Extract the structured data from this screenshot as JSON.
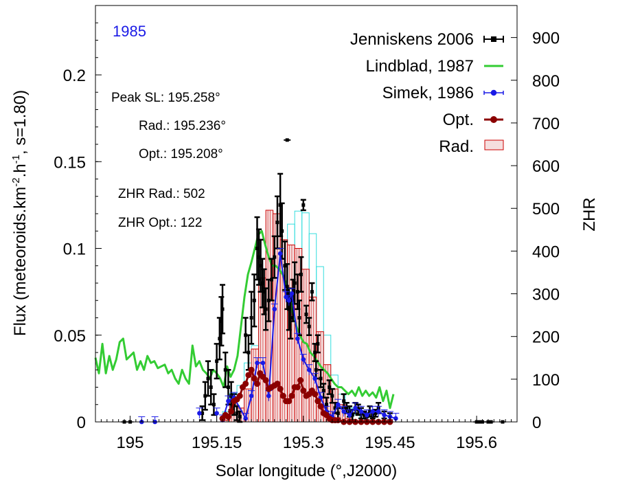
{
  "chart_data": {
    "type": "mixed",
    "title": "1985",
    "xlabel": "Solar longitude (°,J2000)",
    "ylabel_left": {
      "pre": "Flux (meteoroids.km",
      "sup1": "-2",
      "mid": ".h",
      "sup2": "-1",
      "post": ", s=1.80)"
    },
    "ylabel_right": "ZHR",
    "xlim": [
      194.94,
      195.67
    ],
    "ylim_left": [
      0,
      0.24
    ],
    "ylim_right": [
      0,
      975
    ],
    "xticks": [
      {
        "v": 195.0,
        "label": "195"
      },
      {
        "v": 195.15,
        "label": "195.15"
      },
      {
        "v": 195.3,
        "label": "195.3"
      },
      {
        "v": 195.45,
        "label": "195.45"
      },
      {
        "v": 195.6,
        "label": "195.6"
      }
    ],
    "yticks_left": [
      {
        "v": 0,
        "label": "0"
      },
      {
        "v": 0.05,
        "label": "0.05"
      },
      {
        "v": 0.1,
        "label": "0.1"
      },
      {
        "v": 0.15,
        "label": "0.15"
      },
      {
        "v": 0.2,
        "label": "0.2"
      }
    ],
    "yticks_right": [
      {
        "v": 0,
        "label": "0"
      },
      {
        "v": 100,
        "label": "100"
      },
      {
        "v": 200,
        "label": "200"
      },
      {
        "v": 300,
        "label": "300"
      },
      {
        "v": 400,
        "label": "400"
      },
      {
        "v": 500,
        "label": "500"
      },
      {
        "v": 600,
        "label": "600"
      },
      {
        "v": 700,
        "label": "700"
      },
      {
        "v": 800,
        "label": "800"
      },
      {
        "v": 900,
        "label": "900"
      }
    ],
    "annotations": {
      "peak_sl": "Peak SL: 195.258°",
      "rad": "Rad.: 195.236°",
      "opt": "Opt.: 195.208°",
      "zhr_rad": "ZHR Rad.: 502",
      "zhr_opt": "ZHR Opt.: 122"
    },
    "legend": {
      "position": "top-right",
      "entries": [
        {
          "label": "Jenniskens 2006",
          "color": "#000000",
          "style": "errorbar-points"
        },
        {
          "label": "Lindblad, 1987",
          "color": "#33cc33",
          "style": "line"
        },
        {
          "label": "Simek, 1986",
          "color": "#1a1ae6",
          "style": "line-points-errorbar"
        },
        {
          "label": "Opt.",
          "color": "#8b0000",
          "style": "line-points"
        },
        {
          "label": "Rad.",
          "color": "#cc0000",
          "style": "histogram"
        }
      ]
    },
    "series": [
      {
        "name": "Rad.",
        "axis": "left",
        "type": "histogram",
        "color": "#cc0000",
        "fill": "#f5dede",
        "bin_width": 0.0125,
        "bins": [
          [
            195.16,
            0.001
          ],
          [
            195.1725,
            0.0125
          ],
          [
            195.185,
            0.008
          ],
          [
            195.1975,
            0.019
          ],
          [
            195.21,
            0.042
          ],
          [
            195.2225,
            0.083
          ],
          [
            195.235,
            0.122
          ],
          [
            195.2475,
            0.12
          ],
          [
            195.26,
            0.105
          ],
          [
            195.2725,
            0.102
          ],
          [
            195.285,
            0.1
          ],
          [
            195.2975,
            0.088
          ],
          [
            195.31,
            0.072
          ],
          [
            195.3225,
            0.052
          ],
          [
            195.335,
            0.033
          ],
          [
            195.3475,
            0.019
          ],
          [
            195.36,
            0.01
          ],
          [
            195.3725,
            0.002
          ]
        ]
      },
      {
        "name": "Rad. (upper)",
        "axis": "left",
        "type": "histogram",
        "color": "#33dddd",
        "bin_width": 0.0125,
        "bins": [
          [
            195.16,
            0.006
          ],
          [
            195.1725,
            0.0165
          ],
          [
            195.185,
            0.021
          ],
          [
            195.1975,
            0.034
          ],
          [
            195.21,
            0.044
          ],
          [
            195.2225,
            0.0555
          ],
          [
            195.235,
            0.074
          ],
          [
            195.2475,
            0.103
          ],
          [
            195.26,
            0.105
          ],
          [
            195.2725,
            0.114
          ],
          [
            195.285,
            0.1215
          ],
          [
            195.2975,
            0.1205
          ],
          [
            195.31,
            0.1085
          ],
          [
            195.3225,
            0.0895
          ],
          [
            195.335,
            0.05
          ],
          [
            195.3475,
            0.027
          ],
          [
            195.36,
            0.016
          ],
          [
            195.3725,
            0.008
          ],
          [
            195.385,
            0.004
          ]
        ]
      },
      {
        "name": "Lindblad, 1987",
        "axis": "left",
        "type": "line",
        "color": "#33cc33",
        "x": [
          194.94,
          194.946,
          194.952,
          194.958,
          194.964,
          194.97,
          194.976,
          194.982,
          194.988,
          194.994,
          195.0,
          195.006,
          195.012,
          195.018,
          195.024,
          195.03,
          195.036,
          195.042,
          195.048,
          195.054,
          195.06,
          195.066,
          195.072,
          195.078,
          195.084,
          195.09,
          195.096,
          195.102,
          195.108,
          195.114,
          195.12,
          195.126,
          195.132,
          195.138,
          195.144,
          195.15,
          195.156,
          195.162,
          195.168,
          195.174,
          195.18,
          195.186,
          195.192,
          195.198,
          195.204,
          195.21,
          195.216,
          195.222,
          195.228,
          195.234,
          195.24,
          195.246,
          195.252,
          195.258,
          195.264,
          195.27,
          195.276,
          195.282,
          195.288,
          195.294,
          195.3,
          195.306,
          195.312,
          195.318,
          195.324,
          195.33,
          195.336,
          195.342,
          195.348,
          195.354,
          195.36,
          195.366,
          195.372,
          195.378,
          195.384,
          195.39,
          195.396,
          195.402,
          195.408,
          195.414,
          195.42,
          195.426,
          195.432,
          195.438,
          195.444,
          195.45,
          195.456
        ],
        "y": [
          0.037,
          0.028,
          0.045,
          0.028,
          0.038,
          0.03,
          0.036,
          0.046,
          0.048,
          0.036,
          0.038,
          0.04,
          0.03,
          0.035,
          0.03,
          0.038,
          0.034,
          0.035,
          0.031,
          0.032,
          0.033,
          0.028,
          0.03,
          0.025,
          0.022,
          0.03,
          0.025,
          0.022,
          0.044,
          0.032,
          0.035,
          0.03,
          0.028,
          0.025,
          0.03,
          0.028,
          0.025,
          0.02,
          0.032,
          0.026,
          0.03,
          0.038,
          0.055,
          0.072,
          0.085,
          0.092,
          0.1,
          0.108,
          0.11,
          0.102,
          0.095,
          0.09,
          0.09,
          0.088,
          0.085,
          0.08,
          0.075,
          0.062,
          0.055,
          0.05,
          0.046,
          0.045,
          0.04,
          0.038,
          0.035,
          0.032,
          0.03,
          0.028,
          0.025,
          0.022,
          0.02,
          0.02,
          0.018,
          0.016,
          0.018,
          0.015,
          0.02,
          0.015,
          0.018,
          0.015,
          0.017,
          0.014,
          0.02,
          0.012,
          0.018,
          0.008,
          0.016
        ]
      },
      {
        "name": "Jenniskens 2006",
        "axis": "left",
        "type": "errorbar-points",
        "color": "#000000",
        "points": [
          [
            194.99,
            0,
            0
          ],
          [
            195.0,
            0,
            0
          ],
          [
            195.125,
            0.005,
            0.004
          ],
          [
            195.13,
            0.015,
            0.008
          ],
          [
            195.135,
            0.025,
            0.01
          ],
          [
            195.14,
            0.02,
            0.01
          ],
          [
            195.145,
            0.01,
            0.006
          ],
          [
            195.15,
            0.035,
            0.01
          ],
          [
            195.155,
            0.048,
            0.012
          ],
          [
            195.158,
            0.058,
            0.014
          ],
          [
            195.16,
            0.065,
            0.014
          ],
          [
            195.165,
            0.03,
            0.01
          ],
          [
            195.17,
            0.02,
            0.01
          ],
          [
            195.175,
            0.015,
            0.008
          ],
          [
            195.18,
            0.01,
            0.006
          ],
          [
            195.185,
            0.005,
            0.004
          ],
          [
            195.19,
            0.003,
            0.003
          ],
          [
            195.2,
            0.05,
            0.01
          ],
          [
            195.205,
            0.04,
            0.01
          ],
          [
            195.21,
            0.06,
            0.015
          ],
          [
            195.215,
            0.07,
            0.015
          ],
          [
            195.22,
            0.1,
            0.018
          ],
          [
            195.223,
            0.095,
            0.016
          ],
          [
            195.226,
            0.09,
            0.015
          ],
          [
            195.229,
            0.08,
            0.014
          ],
          [
            195.232,
            0.075,
            0.013
          ],
          [
            195.235,
            0.065,
            0.012
          ],
          [
            195.24,
            0.07,
            0.012
          ],
          [
            195.245,
            0.082,
            0.012
          ],
          [
            195.25,
            0.095,
            0.012
          ],
          [
            195.255,
            0.115,
            0.015
          ],
          [
            195.26,
            0.125,
            0.018
          ],
          [
            195.263,
            0.11,
            0.016
          ],
          [
            195.268,
            0.09,
            0.014
          ],
          [
            195.272,
            0.078,
            0.013
          ],
          [
            195.275,
            0.065,
            0.012
          ],
          [
            195.278,
            0.06,
            0.012
          ],
          [
            195.282,
            0.07,
            0.012
          ],
          [
            195.285,
            0.08,
            0.012
          ],
          [
            195.29,
            0.075,
            0.01
          ],
          [
            195.293,
            0.06,
            0.01
          ],
          [
            195.296,
            0.085,
            0.01
          ],
          [
            195.3,
            0.125,
            0.003
          ],
          [
            195.305,
            0.062,
            0.005
          ],
          [
            195.31,
            0.055,
            0.005
          ],
          [
            195.315,
            0.075,
            0.005
          ],
          [
            195.32,
            0.04,
            0.005
          ],
          [
            195.322,
            0.03,
            0.005
          ],
          [
            195.325,
            0.045,
            0.005
          ],
          [
            195.33,
            0.025,
            0.005
          ],
          [
            195.335,
            0.018,
            0.004
          ],
          [
            195.34,
            0.01,
            0.004
          ],
          [
            195.345,
            0.02,
            0.004
          ],
          [
            195.35,
            0.015,
            0.004
          ],
          [
            195.355,
            0.008,
            0.003
          ],
          [
            195.36,
            0.005,
            0.003
          ],
          [
            195.37,
            0.012,
            0.004
          ],
          [
            195.375,
            0.008,
            0.003
          ],
          [
            195.38,
            0.006,
            0.003
          ],
          [
            195.385,
            0.004,
            0.003
          ],
          [
            195.39,
            0.008,
            0.003
          ],
          [
            195.395,
            0.007,
            0.003
          ],
          [
            195.4,
            0.005,
            0.003
          ],
          [
            195.405,
            0.004,
            0.002
          ],
          [
            195.41,
            0.003,
            0.002
          ],
          [
            195.415,
            0.006,
            0.003
          ],
          [
            195.42,
            0.004,
            0.002
          ],
          [
            195.425,
            0.005,
            0.002
          ],
          [
            195.43,
            0.008,
            0.003
          ],
          [
            195.44,
            0.004,
            0.002
          ],
          [
            195.45,
            0.003,
            0.002
          ],
          [
            195.6,
            0,
            0
          ],
          [
            195.605,
            0,
            0
          ],
          [
            195.61,
            0,
            0
          ],
          [
            195.62,
            0,
            0
          ],
          [
            195.625,
            0,
            0
          ],
          [
            195.645,
            0,
            0
          ]
        ]
      },
      {
        "name": "Jenniskens 2006 (isolated)",
        "axis": "right",
        "type": "errorbar-points",
        "color": "#000000",
        "points": [
          [
            195.272,
            660,
            3
          ]
        ]
      },
      {
        "name": "Simek, 1986",
        "axis": "left",
        "type": "line-points-errorbar",
        "color": "#1a1ae6",
        "errbar": 0.003,
        "isolated": [
          [
            195.02,
            0
          ],
          [
            195.043,
            0
          ],
          [
            195.12,
            0.005
          ],
          [
            195.15,
            0.005
          ]
        ],
        "x": [
          195.16,
          195.17,
          195.18,
          195.2,
          195.21,
          195.22,
          195.23,
          195.24,
          195.25,
          195.26,
          195.27,
          195.275,
          195.28,
          195.29,
          195.3,
          195.31,
          195.32,
          195.33,
          195.34,
          195.35,
          195.36,
          195.37,
          195.38,
          195.39,
          195.4,
          195.41,
          195.42,
          195.43,
          195.44,
          195.45,
          195.46
        ],
        "y": [
          0.001,
          0.012,
          0.014,
          0.002,
          0.015,
          0.034,
          0.034,
          0.015,
          0.065,
          0.097,
          0.072,
          0.07,
          0.074,
          0.048,
          0.036,
          0.03,
          0.025,
          0.014,
          0.006,
          0.003,
          0.01,
          0.006,
          0.004,
          0.008,
          0.006,
          0.004,
          0.006,
          0.006,
          0.004,
          0.003,
          0.002
        ]
      },
      {
        "name": "Opt.",
        "axis": "left",
        "type": "line-points",
        "color": "#8b0000",
        "x": [
          195.16,
          195.165,
          195.17,
          195.175,
          195.18,
          195.185,
          195.19,
          195.195,
          195.2,
          195.205,
          195.21,
          195.215,
          195.22,
          195.225,
          195.23,
          195.235,
          195.24,
          195.245,
          195.25,
          195.255,
          195.26,
          195.265,
          195.27,
          195.275,
          195.28,
          195.285,
          195.29,
          195.295,
          195.3,
          195.305,
          195.31,
          195.315,
          195.32,
          195.325,
          195.33,
          195.335,
          195.34,
          195.345,
          195.35,
          195.355,
          195.36,
          195.37,
          195.38,
          195.39,
          195.4,
          195.41,
          195.42,
          195.43,
          195.44,
          195.45
        ],
        "y": [
          0.002,
          0.004,
          0.003,
          0.006,
          0.012,
          0.013,
          0.015,
          0.02,
          0.022,
          0.027,
          0.03,
          0.025,
          0.022,
          0.028,
          0.026,
          0.024,
          0.019,
          0.02,
          0.021,
          0.022,
          0.019,
          0.015,
          0.012,
          0.012,
          0.015,
          0.02,
          0.02,
          0.024,
          0.018,
          0.015,
          0.016,
          0.018,
          0.016,
          0.012,
          0.009,
          0.005,
          0.004,
          0.002,
          0.001,
          0.001,
          0.001,
          0,
          0,
          0,
          0,
          0,
          0,
          0,
          0,
          0
        ]
      }
    ]
  }
}
